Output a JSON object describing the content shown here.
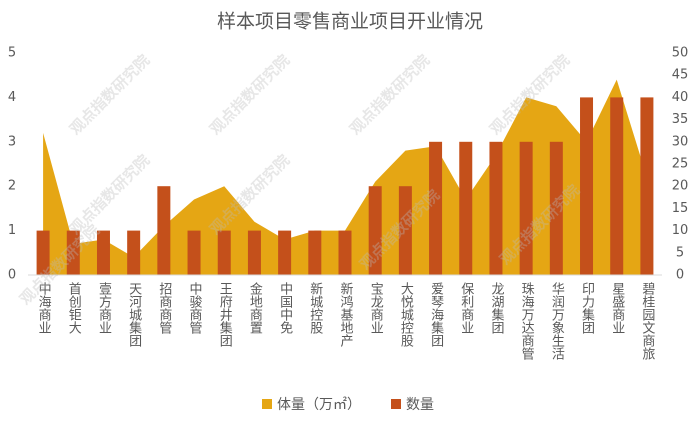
{
  "chart_data": {
    "type": "bar",
    "title": "样本项目零售商业项目开业情况",
    "watermark": "观点指数研究院",
    "categories": [
      "中海商业",
      "首创钜大",
      "壹方商业",
      "天河城集团",
      "招商商管",
      "中骏商管",
      "王府井集团",
      "金地商置",
      "中国中免",
      "新城控股",
      "新鸿基地产",
      "宝龙商业",
      "大悦城控股",
      "爱琴海集团",
      "保利商业",
      "龙湖集团",
      "珠海万达商管",
      "华润万象生活",
      "印力集团",
      "星盛商业",
      "碧桂园文商旅"
    ],
    "series": [
      {
        "name": "体量（万㎡）",
        "type": "area",
        "axis": "y2",
        "color": "#E5A614",
        "values": [
          32,
          7,
          8,
          4,
          11,
          17,
          20,
          12,
          8,
          10,
          10,
          21,
          28,
          29,
          17,
          27,
          40,
          38,
          30,
          44,
          22
        ]
      },
      {
        "name": "数量",
        "type": "bar",
        "color": "#C4501B",
        "values": [
          1,
          1,
          1,
          1,
          2,
          1,
          1,
          1,
          1,
          1,
          1,
          2,
          2,
          3,
          3,
          3,
          3,
          3,
          4,
          4,
          4
        ]
      }
    ],
    "ylim": [
      0,
      5
    ],
    "yticks": [
      0,
      1,
      2,
      3,
      4,
      5
    ],
    "y2lim": [
      0,
      50
    ],
    "y2ticks": [
      0,
      5,
      10,
      15,
      20,
      25,
      30,
      35,
      40,
      45,
      50
    ],
    "legend": "bottom"
  }
}
